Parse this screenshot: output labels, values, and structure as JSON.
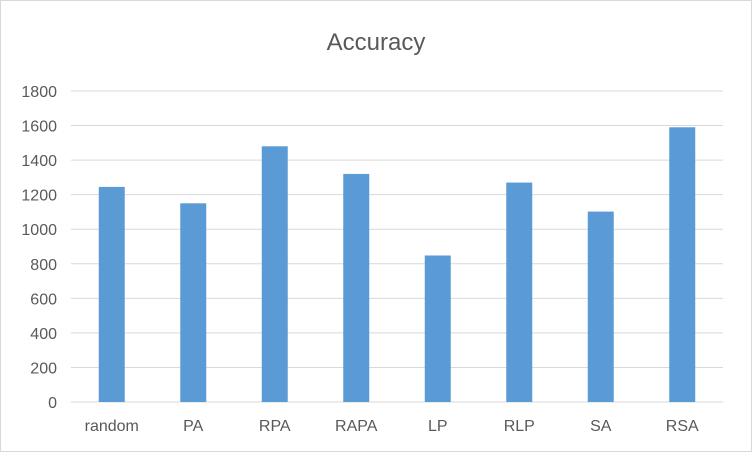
{
  "chart_data": {
    "type": "bar",
    "title": "Accuracy",
    "xlabel": "",
    "ylabel": "",
    "categories": [
      "random",
      "PA",
      "RPA",
      "RAPA",
      "LP",
      "RLP",
      "SA",
      "RSA"
    ],
    "values": [
      1245,
      1150,
      1480,
      1320,
      848,
      1270,
      1102,
      1590
    ],
    "ylim": [
      0,
      1800
    ],
    "yticks": [
      "0",
      "200",
      "400",
      "600",
      "800",
      "1000",
      "1200",
      "1400",
      "1600",
      "1800"
    ],
    "grid": true,
    "legend": "none",
    "colors": {
      "bar": "#5b9bd5",
      "grid": "#d9d9d9",
      "text": "#595959"
    }
  }
}
